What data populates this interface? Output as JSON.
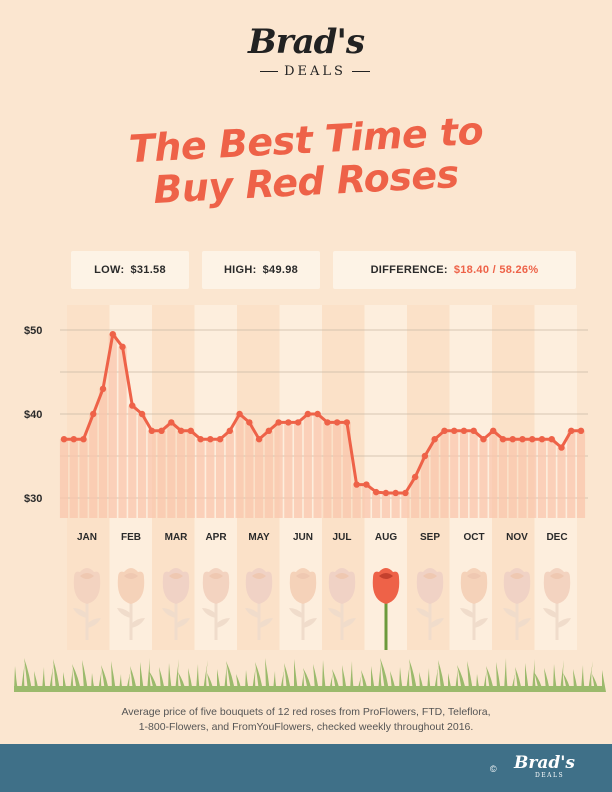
{
  "brand": {
    "logo_script": "Brad's",
    "logo_sub": "DEALS"
  },
  "title": {
    "line1": "The Best Time to",
    "line2": "Buy Red Roses"
  },
  "stats": {
    "low_label": "LOW:",
    "low_value": "$31.58",
    "high_label": "HIGH:",
    "high_value": "$49.98",
    "diff_label": "DIFFERENCE:",
    "diff_value": "$18.40 / 58.26%"
  },
  "colors": {
    "accent": "#ee6248",
    "background": "#fbe6d0",
    "footer": "#3f7088",
    "grass": "#9bba6c"
  },
  "chart_data": {
    "type": "line",
    "ylim": [
      26.5,
      51
    ],
    "yticks": [
      30,
      40,
      50
    ],
    "ytick_labels": [
      "$30",
      "$40",
      "$50"
    ],
    "months": [
      "JAN",
      "FEB",
      "MAR",
      "APR",
      "MAY",
      "JUN",
      "JUL",
      "AUG",
      "SEP",
      "OCT",
      "NOV",
      "DEC"
    ],
    "highlight_month": "AUG",
    "grid": true,
    "values": [
      37,
      37,
      37,
      40,
      43,
      49.5,
      48,
      41,
      40,
      38,
      38,
      39,
      38,
      38,
      37,
      37,
      37,
      38,
      40,
      39,
      37,
      38,
      39,
      39,
      39,
      40,
      40,
      39,
      39,
      39,
      31.6,
      31.6,
      30.7,
      30.6,
      30.6,
      30.6,
      32.5,
      35,
      37,
      38,
      38,
      38,
      38,
      37,
      38,
      37,
      37,
      37,
      37,
      37,
      37,
      36,
      38,
      38
    ]
  },
  "footnote": {
    "line1": "Average price of five bouquets of 12 red roses from ProFlowers, FTD, Teleflora,",
    "line2": "1-800-Flowers, and FromYouFlowers, checked weekly throughout 2016."
  },
  "footer": {
    "copyright": "©",
    "logo_script": "Brad's",
    "logo_sub": "DEALS"
  }
}
